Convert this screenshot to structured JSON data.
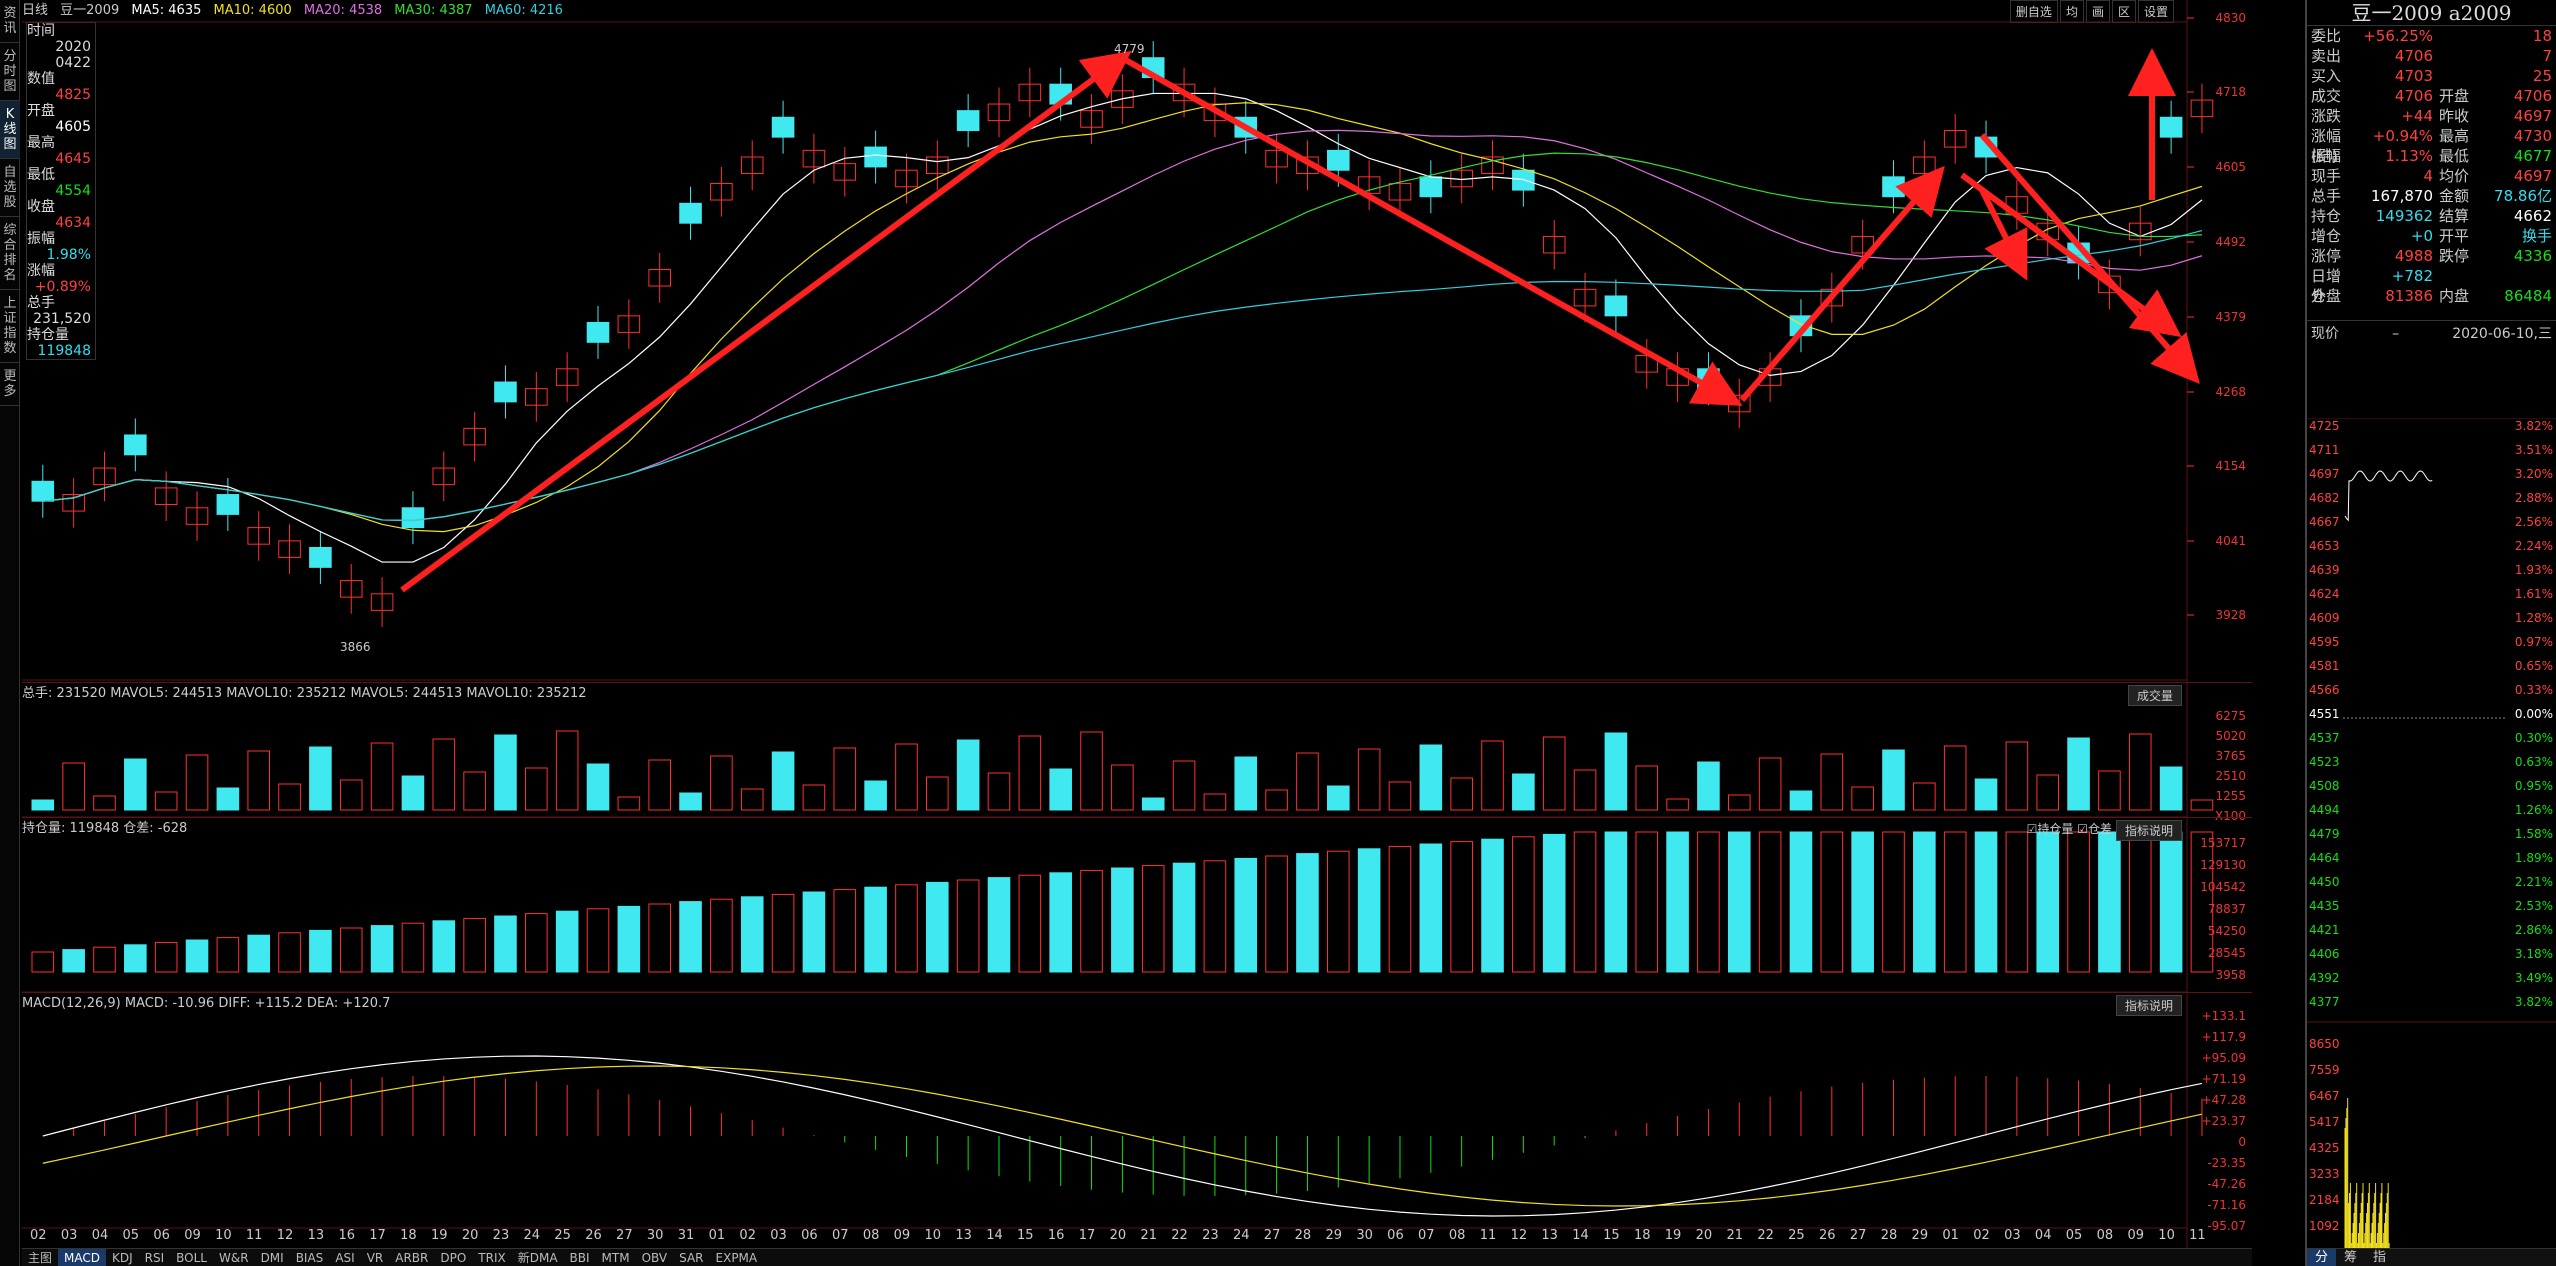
{
  "sidebar": [
    "资讯",
    "分时图",
    "K线图",
    "自选股",
    "综合排名",
    "上证指数",
    "更多"
  ],
  "header": {
    "period": "日线",
    "symbol": "豆一2009",
    "ma5": "MA5: 4635",
    "ma10": "MA10: 4600",
    "ma20": "MA20: 4538",
    "ma30": "MA30: 4387",
    "ma60": "MA60: 4216"
  },
  "toolbar": [
    "删自选",
    "均",
    "画",
    "区",
    "设置"
  ],
  "price_axis": [
    "4830",
    "4718",
    "4605",
    "4492",
    "4379",
    "4268",
    "4154",
    "4041",
    "3928"
  ],
  "price_labels": {
    "high": "4779",
    "low": "3866"
  },
  "info_box": [
    {
      "k": "时间",
      "v": "2020"
    },
    {
      "k": "",
      "v": "0422"
    },
    {
      "k": "数值",
      "v": "4825"
    },
    {
      "k": "开盘",
      "v": "4605"
    },
    {
      "k": "最高",
      "v": "4645"
    },
    {
      "k": "最低",
      "v": "4554"
    },
    {
      "k": "收盘",
      "v": "4634"
    },
    {
      "k": "振幅",
      "v": "1.98%"
    },
    {
      "k": "涨幅",
      "v": "+0.89%"
    },
    {
      "k": "总手",
      "v": "231,520"
    },
    {
      "k": "持仓量",
      "v": "119848"
    }
  ],
  "volume": {
    "header": "总手: 231520  MAVOL5: 244513  MAVOL10: 235212  MAVOL5: 244513  MAVOL10: 235212",
    "tag": "成交量",
    "axis": [
      "6275",
      "5020",
      "3765",
      "2510",
      "1255",
      "X100"
    ]
  },
  "oi": {
    "header": "持仓量: 119848  仓差: -628",
    "checks": [
      "持仓量",
      "仓差"
    ],
    "tag": "指标说明",
    "axis": [
      "153717",
      "129130",
      "104542",
      "78837",
      "54250",
      "28545",
      "3958"
    ]
  },
  "macd": {
    "header": "MACD(12,26,9)  MACD: -10.96  DIFF: +115.2  DEA: +120.7",
    "tag": "指标说明",
    "axis": [
      "+133.1",
      "+117.9",
      "+95.09",
      "+71.19",
      "+47.28",
      "+23.37",
      "0",
      "-23.35",
      "-47.26",
      "-71.16",
      "-95.07"
    ]
  },
  "xdates": [
    "02",
    "03",
    "04",
    "05",
    "06",
    "09",
    "10",
    "11",
    "12",
    "13",
    "16",
    "17",
    "18",
    "19",
    "20",
    "23",
    "24",
    "25",
    "26",
    "27",
    "30",
    "31",
    "01",
    "02",
    "03",
    "06",
    "07",
    "08",
    "09",
    "10",
    "13",
    "14",
    "15",
    "16",
    "17",
    "20",
    "21",
    "22",
    "23",
    "24",
    "27",
    "28",
    "29",
    "30",
    "06",
    "07",
    "08",
    "11",
    "12",
    "13",
    "14",
    "15",
    "18",
    "19",
    "20",
    "21",
    "22",
    "25",
    "26",
    "27",
    "28",
    "29",
    "01",
    "02",
    "03",
    "04",
    "05",
    "08",
    "09",
    "10",
    "11"
  ],
  "tabs": [
    "主图",
    "MACD",
    "KDJ",
    "RSI",
    "BOLL",
    "W&R",
    "DMI",
    "BIAS",
    "ASI",
    "VR",
    "ARBR",
    "DPO",
    "TRIX",
    "新DMA",
    "BBI",
    "MTM",
    "OBV",
    "SAR",
    "EXPMA"
  ],
  "right_panel": {
    "title": "豆一2009 a2009",
    "rows": [
      {
        "k1": "委比",
        "v1": "+56.25%",
        "k2": "",
        "v2": "18"
      },
      {
        "k1": "卖出",
        "v1": "4706",
        "k2": "",
        "v2": "7"
      },
      {
        "k1": "买入",
        "v1": "4703",
        "k2": "",
        "v2": "25"
      },
      {
        "k1": "成交",
        "v1": "4706",
        "k2": "开盘",
        "v2": "4706"
      },
      {
        "k1": "涨跌",
        "v1": "+44",
        "k2": "昨收",
        "v2": "4697"
      },
      {
        "k1": "涨幅(结)",
        "v1": "+0.94%",
        "k2": "最高",
        "v2": "4730"
      },
      {
        "k1": "振幅",
        "v1": "1.13%",
        "k2": "最低",
        "v2": "4677"
      },
      {
        "k1": "现手",
        "v1": "4",
        "k2": "均价",
        "v2": "4697"
      },
      {
        "k1": "总手",
        "v1": "167,870",
        "k2": "金额",
        "v2": "78.86亿"
      },
      {
        "k1": "持仓",
        "v1": "149362",
        "k2": "结算",
        "v2": "4662"
      },
      {
        "k1": "增仓",
        "v1": "+0",
        "k2": "开平",
        "v2": "换手"
      },
      {
        "k1": "涨停",
        "v1": "4988",
        "k2": "跌停",
        "v2": "4336"
      },
      {
        "k1": "日增仓",
        "v1": "+782",
        "k2": "",
        "v2": ""
      },
      {
        "k1": "外盘",
        "v1": "81386",
        "k2": "内盘",
        "v2": "86484"
      }
    ],
    "current_label": "现价",
    "current_dash": "–",
    "current_date": "2020-06-10,三",
    "mini_left": [
      "4725",
      "4711",
      "4697",
      "4682",
      "4667",
      "4653",
      "4639",
      "4624",
      "4609",
      "4595",
      "4581",
      "4566",
      "4551",
      "4537",
      "4523",
      "4508",
      "4494",
      "4479",
      "4464",
      "4450",
      "4435",
      "4421",
      "4406",
      "4392",
      "4377"
    ],
    "mini_right": [
      "3.82%",
      "3.51%",
      "3.20%",
      "2.88%",
      "2.56%",
      "2.24%",
      "1.93%",
      "1.61%",
      "1.28%",
      "0.97%",
      "0.65%",
      "0.33%",
      "0.00%",
      "0.30%",
      "0.63%",
      "0.95%",
      "1.26%",
      "1.58%",
      "1.89%",
      "2.21%",
      "2.53%",
      "2.86%",
      "3.18%",
      "3.49%",
      "3.82%"
    ],
    "vol_axis": [
      "8650",
      "7559",
      "6467",
      "5417",
      "4325",
      "3233",
      "2184",
      "1092"
    ],
    "tabs": [
      "分",
      "筹",
      "指"
    ]
  }
}
